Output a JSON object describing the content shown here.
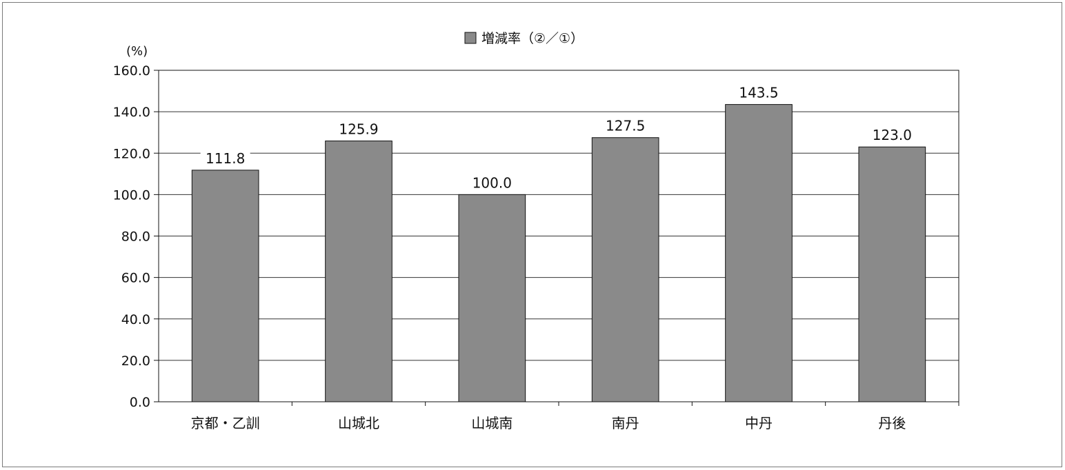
{
  "chart_data": {
    "type": "bar",
    "unit_label": "(%)",
    "legend": "増減率（②／①）",
    "categories": [
      "京都・乙訓",
      "山城北",
      "山城南",
      "南丹",
      "中丹",
      "丹後"
    ],
    "values": [
      111.8,
      125.9,
      100.0,
      127.5,
      143.5,
      123.0
    ],
    "value_labels": [
      "111.8",
      "125.9",
      "100.0",
      "127.5",
      "143.5",
      "123.0"
    ],
    "yticks": [
      "0.0",
      "20.0",
      "40.0",
      "60.0",
      "80.0",
      "100.0",
      "120.0",
      "140.0",
      "160.0"
    ],
    "ylim": [
      0,
      160
    ],
    "grid": true,
    "legend_position": "top-center",
    "colors": {
      "bar": "#8a8a8a",
      "bar_stroke": "#111111",
      "grid": "#333333"
    }
  }
}
